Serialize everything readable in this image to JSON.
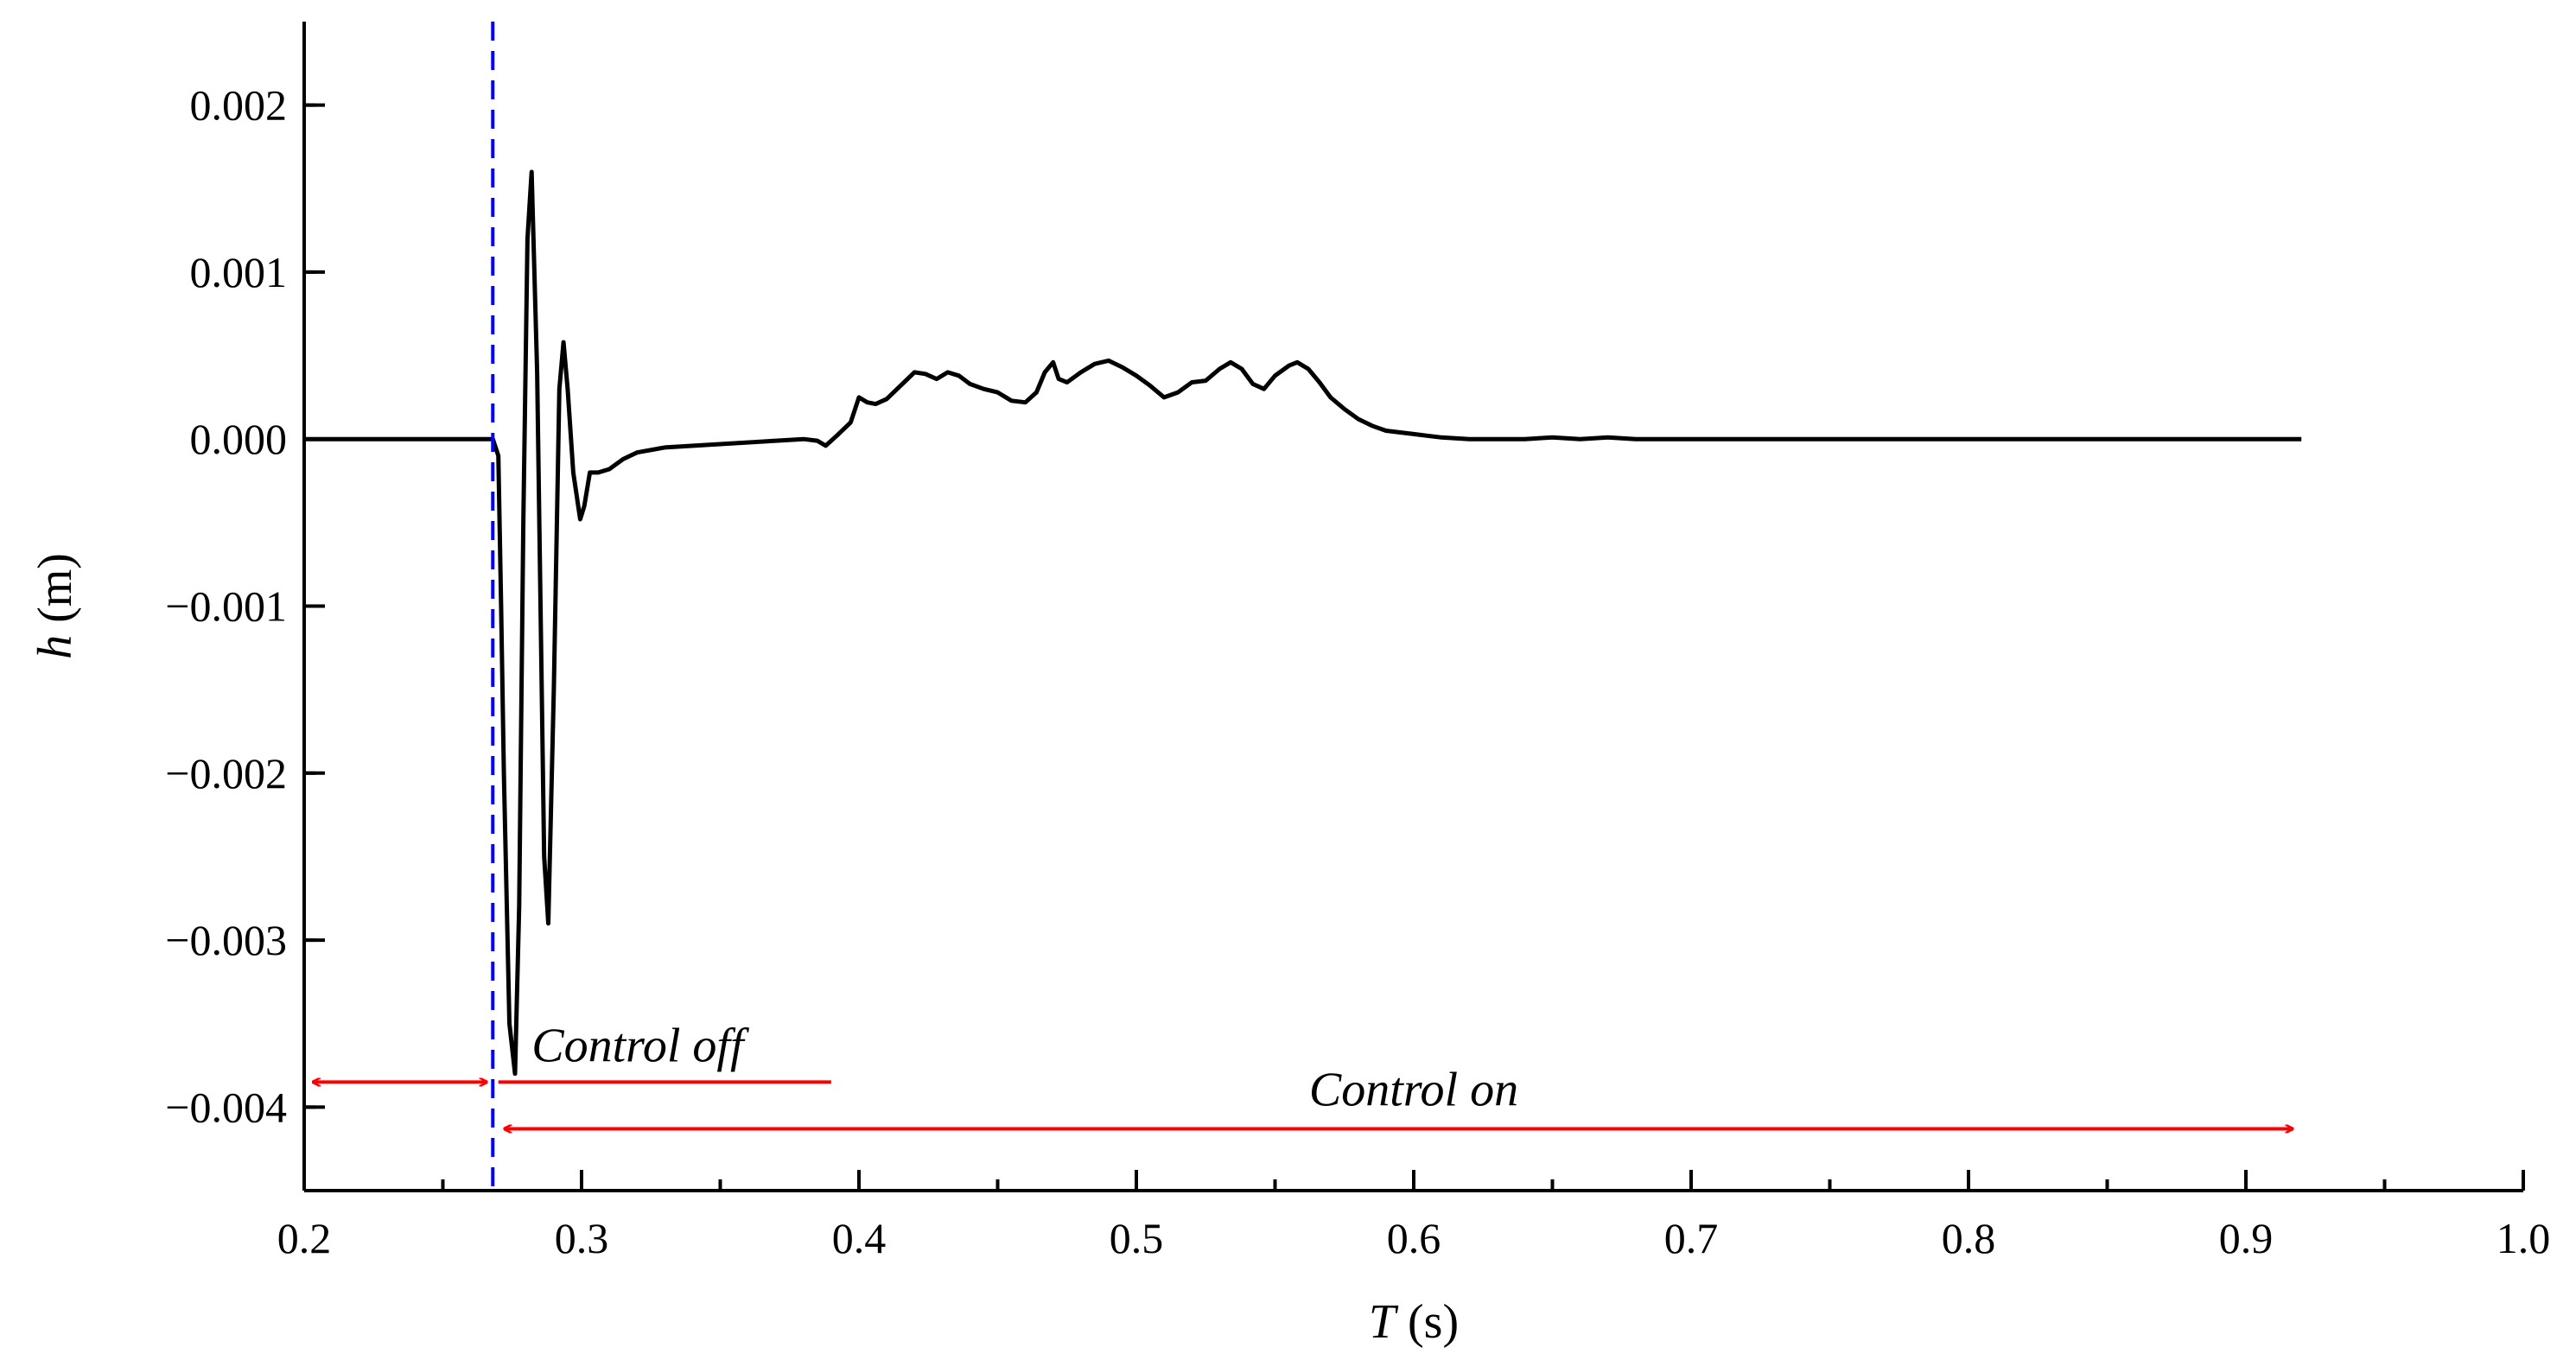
{
  "chart_data": {
    "type": "line",
    "xlabel": {
      "var": "T",
      "unit": " (s)"
    },
    "ylabel": {
      "var": "h",
      "unit": " (m)"
    },
    "xlim": [
      0.2,
      1.0
    ],
    "ylim": [
      -0.0045,
      0.0025
    ],
    "x_ticks": [
      {
        "value": 0.2,
        "label": "0.2"
      },
      {
        "value": 0.3,
        "label": "0.3"
      },
      {
        "value": 0.4,
        "label": "0.4"
      },
      {
        "value": 0.5,
        "label": "0.5"
      },
      {
        "value": 0.6,
        "label": "0.6"
      },
      {
        "value": 0.7,
        "label": "0.7"
      },
      {
        "value": 0.8,
        "label": "0.8"
      },
      {
        "value": 0.9,
        "label": "0.9"
      },
      {
        "value": 1.0,
        "label": "1.0"
      }
    ],
    "y_ticks": [
      {
        "value": 0.002,
        "label": "0.002"
      },
      {
        "value": 0.001,
        "label": "0.001"
      },
      {
        "value": 0.0,
        "label": "0.000"
      },
      {
        "value": -0.001,
        "label": "−0.001"
      },
      {
        "value": -0.002,
        "label": "−0.002"
      },
      {
        "value": -0.003,
        "label": "−0.003"
      },
      {
        "value": -0.004,
        "label": "−0.004"
      }
    ],
    "grid": false,
    "colors": {
      "line": "#000000",
      "marker_line": "#0000ff",
      "arrows": "#ff0000"
    },
    "series": [
      {
        "x": [
          0.2,
          0.26,
          0.268,
          0.27,
          0.271,
          0.272,
          0.274,
          0.276,
          0.2775,
          0.279,
          0.2805,
          0.282,
          0.284,
          0.2865,
          0.288,
          0.29,
          0.292,
          0.2935,
          0.295,
          0.297,
          0.2995,
          0.301,
          0.303,
          0.306,
          0.31,
          0.315,
          0.32,
          0.33,
          0.35,
          0.37,
          0.38,
          0.385,
          0.388,
          0.392,
          0.397,
          0.4,
          0.403,
          0.406,
          0.41,
          0.415,
          0.42,
          0.424,
          0.428,
          0.432,
          0.436,
          0.44,
          0.445,
          0.45,
          0.455,
          0.46,
          0.464,
          0.467,
          0.47,
          0.472,
          0.475,
          0.48,
          0.485,
          0.49,
          0.495,
          0.5,
          0.505,
          0.51,
          0.515,
          0.52,
          0.525,
          0.53,
          0.534,
          0.538,
          0.542,
          0.546,
          0.55,
          0.555,
          0.558,
          0.562,
          0.566,
          0.57,
          0.575,
          0.58,
          0.585,
          0.59,
          0.6,
          0.61,
          0.62,
          0.63,
          0.64,
          0.65,
          0.66,
          0.67,
          0.68,
          0.7,
          0.75,
          0.8,
          0.85,
          0.9,
          0.92
        ],
        "y": [
          0.0,
          0.0,
          0.0,
          -0.0001,
          -0.001,
          -0.002,
          -0.0035,
          -0.0038,
          -0.0028,
          -0.0005,
          0.0012,
          0.0016,
          0.0004,
          -0.0025,
          -0.0029,
          -0.0015,
          0.0003,
          0.00058,
          0.0003,
          -0.0002,
          -0.00048,
          -0.0004,
          -0.0002,
          -0.0002,
          -0.00018,
          -0.00012,
          -8e-05,
          -5e-05,
          -3e-05,
          -1e-05,
          0.0,
          -1e-05,
          -4e-05,
          2e-05,
          0.0001,
          0.00025,
          0.00022,
          0.00021,
          0.00024,
          0.00032,
          0.0004,
          0.00039,
          0.00036,
          0.0004,
          0.00038,
          0.00033,
          0.0003,
          0.00028,
          0.00023,
          0.00022,
          0.00028,
          0.0004,
          0.00046,
          0.00036,
          0.00034,
          0.0004,
          0.00045,
          0.00047,
          0.00043,
          0.00038,
          0.00032,
          0.00025,
          0.00028,
          0.00034,
          0.00035,
          0.00042,
          0.00046,
          0.00042,
          0.00033,
          0.0003,
          0.00038,
          0.00044,
          0.00046,
          0.00042,
          0.00034,
          0.00025,
          0.00018,
          0.00012,
          8e-05,
          5e-05,
          3e-05,
          1e-05,
          0.0,
          0.0,
          0.0,
          1e-05,
          0.0,
          1e-05,
          0.0,
          0.0,
          0.0,
          0.0,
          0.0,
          0.0,
          0.0
        ]
      }
    ],
    "vline_x": 0.268,
    "annotations": {
      "control_off": {
        "text": "Control off",
        "arrow": [
          0.203,
          0.266
        ],
        "y": -0.00385,
        "underline": [
          0.27,
          0.39
        ]
      },
      "control_on": {
        "text": "Control on",
        "arrow": [
          0.272,
          0.917
        ],
        "y": -0.00413
      }
    }
  }
}
